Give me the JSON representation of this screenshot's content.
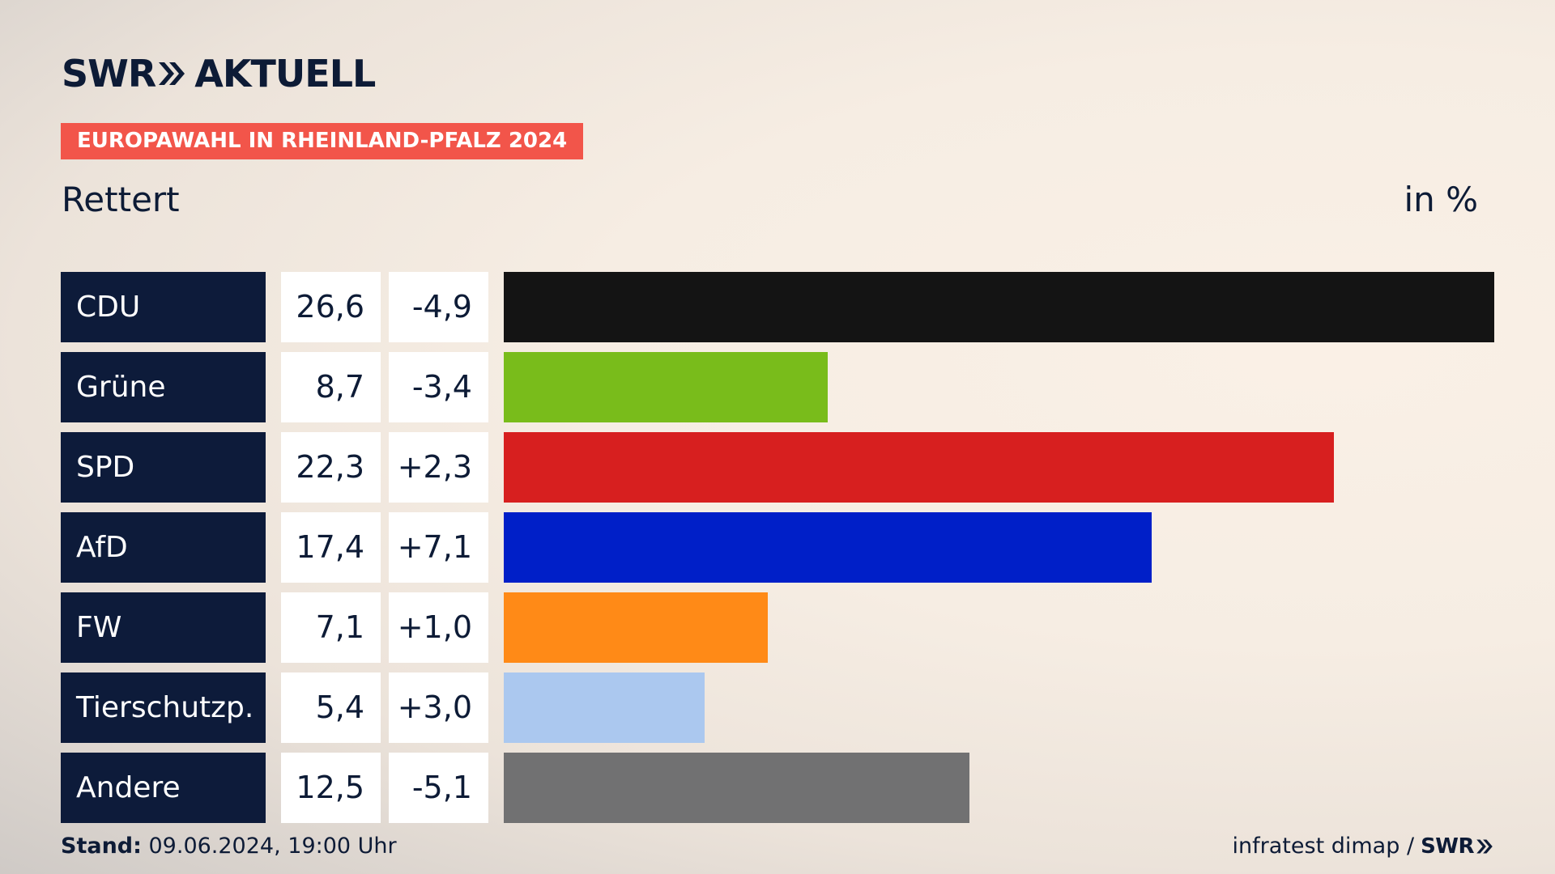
{
  "brand": {
    "logo_left": "SWR",
    "logo_right": "AKTUELL"
  },
  "header": {
    "badge": "EUROPAWAHL IN RHEINLAND-PFALZ 2024",
    "region": "Rettert",
    "unit": "in %"
  },
  "footer": {
    "stand_label": "Stand:",
    "stand_value": " 09.06.2024, 19:00 Uhr",
    "source_text": "infratest dimap /",
    "source_brand": "SWR"
  },
  "colors": {
    "badge": "#f2554a",
    "label_bg": "#0d1b3a",
    "text": "#0d1b36"
  },
  "chart_data": {
    "type": "bar",
    "orientation": "horizontal",
    "categories": [
      "CDU",
      "Grüne",
      "SPD",
      "AfD",
      "FW",
      "Tierschutzp.",
      "Andere"
    ],
    "values": [
      26.6,
      8.7,
      22.3,
      17.4,
      7.1,
      5.4,
      12.5
    ],
    "value_labels": [
      "26,6",
      "8,7",
      "22,3",
      "17,4",
      "7,1",
      "5,4",
      "12,5"
    ],
    "change_labels": [
      "-4,9",
      "-3,4",
      "+2,3",
      "+7,1",
      "+1,0",
      "+3,0",
      "-5,1"
    ],
    "changes": [
      -4.9,
      -3.4,
      2.3,
      7.1,
      1.0,
      3.0,
      -5.1
    ],
    "colors": [
      "#141414",
      "#79bc1b",
      "#d71f1f",
      "#001fc8",
      "#ff8a17",
      "#abc8ef",
      "#717172"
    ],
    "xlim": [
      0,
      26.6
    ],
    "grid": false
  }
}
